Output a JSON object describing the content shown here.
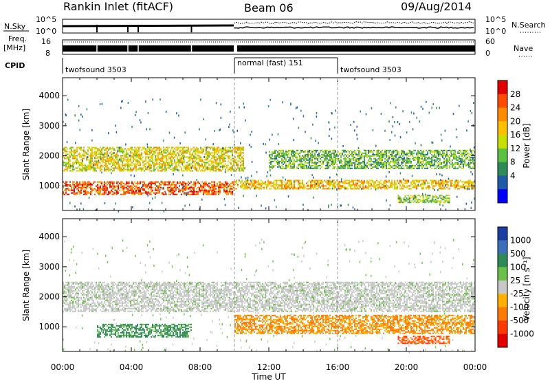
{
  "header": {
    "station": "Rankin Inlet (fitACF)",
    "beam": "Beam 06",
    "date": "09/Aug/2014"
  },
  "strips": {
    "nsky_label": "N.Sky",
    "nsearch_label": "N.Search",
    "freq_label_line1": "Freq.",
    "freq_label_line2": "[MHz]",
    "nave_label": "Nave",
    "cpid_label": "CPID",
    "left_ticks_top": [
      "10^5",
      "10^0"
    ],
    "right_ticks_top": [
      "10^5",
      "10^0"
    ],
    "left_ticks_freq": [
      "16",
      "8"
    ],
    "right_ticks_nave": [
      "60",
      "0"
    ],
    "cpid_segments": [
      {
        "label": "twofsound 3503",
        "start_h": 0,
        "end_h": 10
      },
      {
        "label": "normal (fast) 151",
        "start_h": 10,
        "end_h": 16
      },
      {
        "label": "twofsound 3503",
        "start_h": 16,
        "end_h": 24
      }
    ]
  },
  "panels": {
    "power_ylabel": "Slant Range [km]",
    "velocity_ylabel": "Slant Range [km]",
    "xlabel": "Time UT"
  },
  "colorbars": {
    "power": {
      "label": "Power [dB]",
      "ticks": [
        "28",
        "24",
        "20",
        "16",
        "12",
        "8",
        "4"
      ],
      "colors": [
        "#e00000",
        "#ff4a00",
        "#ff8c00",
        "#ffc000",
        "#c8e000",
        "#5cc040",
        "#2e8b57",
        "#1e5aa8",
        "#0000ff"
      ]
    },
    "velocity": {
      "label": "Velocity [m s⁻¹]",
      "ticks": [
        "1000",
        "500",
        "100",
        "25",
        "-25",
        "-100",
        "-500",
        "-1000"
      ],
      "colors": [
        "#1a3fa0",
        "#3c6fb8",
        "#2e8b57",
        "#6cc04a",
        "#c8c8c8",
        "#ffb000",
        "#ff7a00",
        "#ff3a00",
        "#e00000"
      ]
    }
  },
  "chart_data": [
    {
      "type": "heatmap",
      "title": "Rankin Inlet (fitACF) Beam 06 09/Aug/2014",
      "panel": "power",
      "xlabel": "Time UT",
      "ylabel": "Slant Range [km]",
      "x_ticks": [
        "00:00",
        "04:00",
        "08:00",
        "12:00",
        "16:00",
        "20:00",
        "00:00"
      ],
      "y_ticks": [
        "1000",
        "2000",
        "3000",
        "4000"
      ],
      "xlim_hours": [
        0,
        24
      ],
      "ylim_km": [
        180,
        4600
      ],
      "color_label": "Power [dB]",
      "bands": [
        {
          "name": "lower",
          "t0": 0.0,
          "t1": 10.0,
          "r0": 700,
          "r1": 1150,
          "level": 26
        },
        {
          "name": "upper",
          "t0": 0.0,
          "t1": 10.5,
          "r0": 1500,
          "r1": 2300,
          "level": 18
        },
        {
          "name": "mid-band",
          "t0": 10.0,
          "t1": 24.0,
          "r0": 900,
          "r1": 1200,
          "level": 20
        },
        {
          "name": "far",
          "t0": 12.0,
          "t1": 24.0,
          "r0": 1600,
          "r1": 2200,
          "level": 12
        },
        {
          "name": "late",
          "t0": 19.5,
          "t1": 22.5,
          "r0": 450,
          "r1": 700,
          "level": 14
        }
      ]
    },
    {
      "type": "heatmap",
      "panel": "velocity",
      "xlabel": "Time UT",
      "ylabel": "Slant Range [km]",
      "x_ticks": [
        "00:00",
        "04:00",
        "08:00",
        "12:00",
        "16:00",
        "20:00",
        "00:00"
      ],
      "y_ticks": [
        "1000",
        "2000",
        "3000",
        "4000"
      ],
      "xlim_hours": [
        0,
        24
      ],
      "ylim_km": [
        180,
        4600
      ],
      "color_label": "Velocity [m s⁻¹]",
      "bands": [
        {
          "name": "ground",
          "t0": 0.0,
          "t1": 24.0,
          "r0": 1500,
          "r1": 2500,
          "level": 0
        },
        {
          "name": "westward",
          "t0": 2.0,
          "t1": 7.5,
          "r0": 650,
          "r1": 1100,
          "level": 150
        },
        {
          "name": "flow",
          "t0": 10.0,
          "t1": 24.0,
          "r0": 800,
          "r1": 1400,
          "level": -200
        },
        {
          "name": "late",
          "t0": 19.5,
          "t1": 22.5,
          "r0": 450,
          "r1": 700,
          "level": -400
        }
      ]
    }
  ]
}
